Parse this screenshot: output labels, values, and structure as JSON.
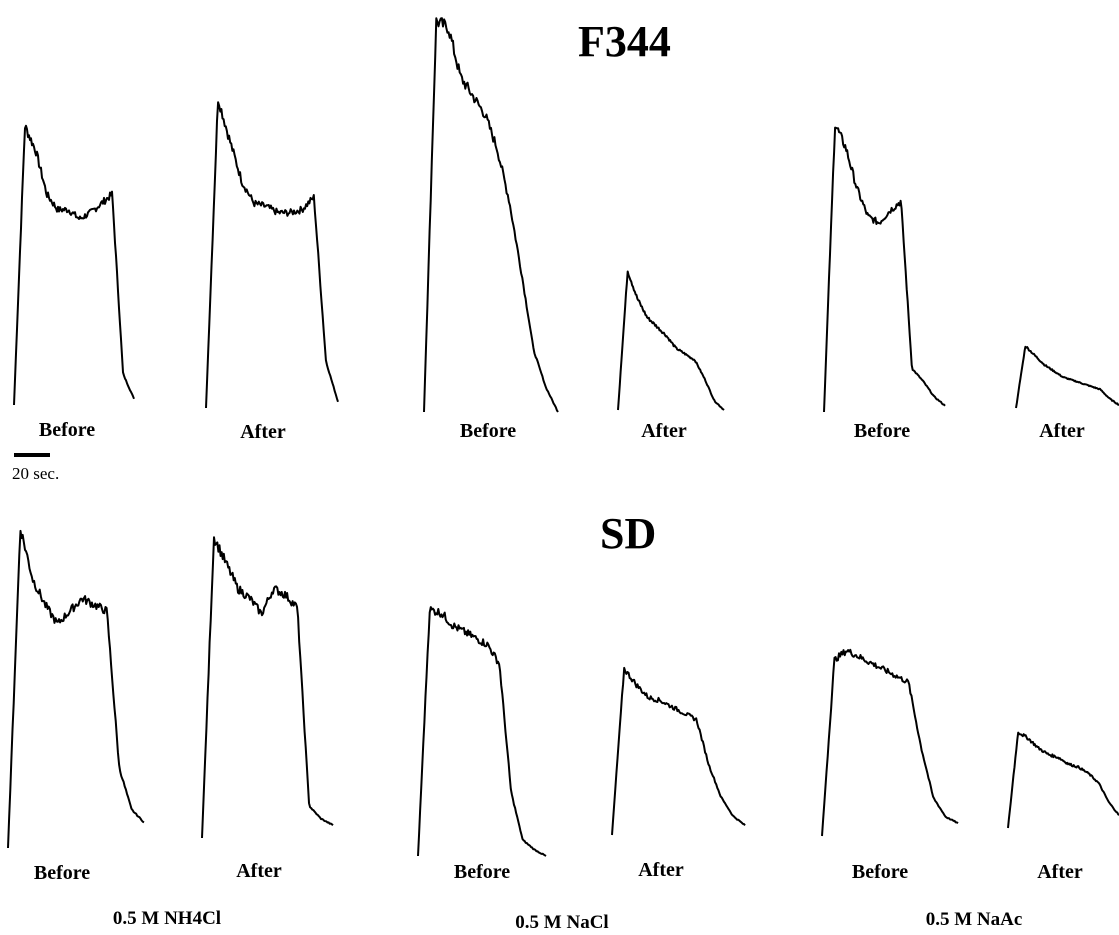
{
  "panels": [
    {
      "title": "F344"
    },
    {
      "title": "SD"
    }
  ],
  "trace_labels": {
    "before": "Before",
    "after": "After"
  },
  "groups": [
    "0.5 M NH4Cl",
    "0.5 M NaCl",
    "0.5 M NaAc"
  ],
  "scale_bar": {
    "label": "20 sec."
  },
  "chart_data": [
    {
      "type": "line",
      "title": "F344",
      "series": [
        {
          "name": "0.5 M NH4Cl Before",
          "values": [
            0,
            0.9,
            0.82,
            0.68,
            0.63,
            0.63,
            0.6,
            0.62,
            0.65,
            0.68,
            0.1,
            0.02
          ]
        },
        {
          "name": "0.5 M NH4Cl After",
          "values": [
            0,
            1.0,
            0.86,
            0.73,
            0.66,
            0.65,
            0.63,
            0.63,
            0.64,
            0.68,
            0.15,
            0.02
          ]
        },
        {
          "name": "0.5 M NaCl Before",
          "values": [
            0,
            1.26,
            1.24,
            1.08,
            1.02,
            0.96,
            0.85,
            0.68,
            0.45,
            0.2,
            0.08,
            0.0
          ]
        },
        {
          "name": "0.5 M NaCl After",
          "values": [
            0,
            0.45,
            0.36,
            0.3,
            0.27,
            0.24,
            0.2,
            0.18,
            0.16,
            0.1,
            0.03,
            0.0
          ]
        },
        {
          "name": "0.5 M NaAc Before",
          "values": [
            0,
            0.93,
            0.85,
            0.72,
            0.63,
            0.61,
            0.65,
            0.68,
            0.14,
            0.1,
            0.05,
            0.02
          ]
        },
        {
          "name": "0.5 M NaAc After",
          "values": [
            0,
            0.2,
            0.17,
            0.14,
            0.12,
            0.1,
            0.09,
            0.08,
            0.07,
            0.06,
            0.03,
            0.01
          ]
        }
      ]
    },
    {
      "type": "line",
      "title": "SD",
      "series": [
        {
          "name": "0.5 M NH4Cl Before",
          "values": [
            0,
            1.0,
            0.84,
            0.76,
            0.7,
            0.74,
            0.78,
            0.76,
            0.74,
            0.25,
            0.12,
            0.08
          ]
        },
        {
          "name": "0.5 M NH4Cl After",
          "values": [
            0,
            0.94,
            0.86,
            0.78,
            0.75,
            0.7,
            0.78,
            0.76,
            0.72,
            0.1,
            0.06,
            0.04
          ]
        },
        {
          "name": "0.5 M NaCl Before",
          "values": [
            0,
            0.77,
            0.76,
            0.72,
            0.7,
            0.68,
            0.66,
            0.6,
            0.2,
            0.05,
            0.02,
            0.0
          ]
        },
        {
          "name": "0.5 M NaCl After",
          "values": [
            0,
            0.52,
            0.47,
            0.43,
            0.42,
            0.4,
            0.38,
            0.36,
            0.22,
            0.12,
            0.06,
            0.03
          ]
        },
        {
          "name": "0.5 M NaAc Before",
          "values": [
            0,
            0.55,
            0.58,
            0.56,
            0.54,
            0.52,
            0.5,
            0.48,
            0.28,
            0.12,
            0.06,
            0.04
          ]
        },
        {
          "name": "0.5 M NaAc After",
          "values": [
            0,
            0.3,
            0.28,
            0.25,
            0.23,
            0.22,
            0.2,
            0.19,
            0.17,
            0.14,
            0.08,
            0.04
          ]
        }
      ]
    }
  ]
}
